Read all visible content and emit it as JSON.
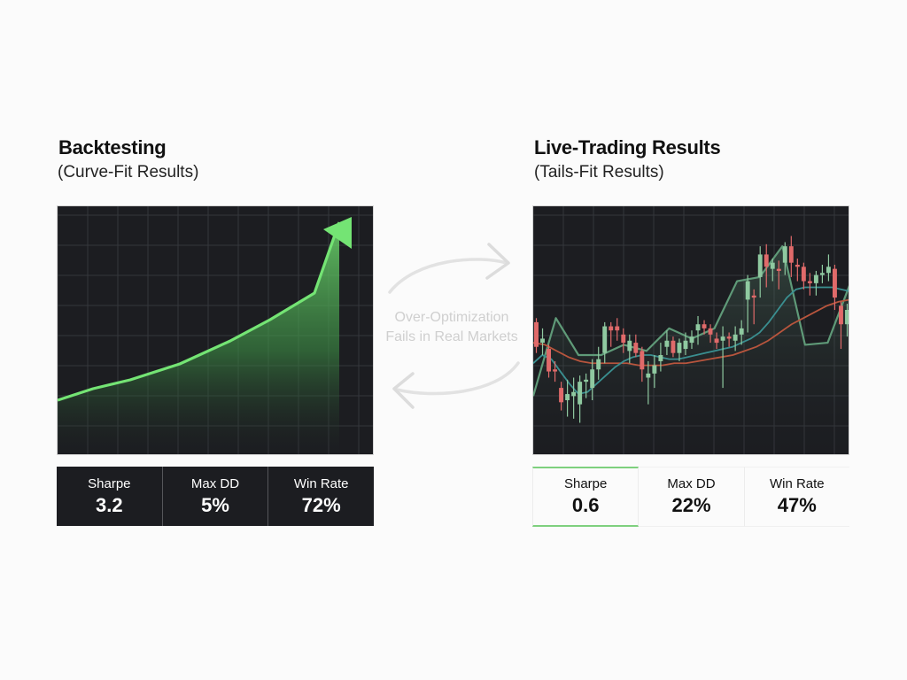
{
  "left_panel": {
    "title": "Backtesting",
    "subtitle": "(Curve-Fit Results)",
    "stats": [
      {
        "label": "Sharpe",
        "value": "3.2"
      },
      {
        "label": "Max DD",
        "value": "5%"
      },
      {
        "label": "Win Rate",
        "value": "72%"
      }
    ]
  },
  "right_panel": {
    "title": "Live-Trading Results",
    "subtitle": "(Tails-Fit Results)",
    "stats": [
      {
        "label": "Sharpe",
        "value": "0.6"
      },
      {
        "label": "Max DD",
        "value": "22%"
      },
      {
        "label": "Win Rate",
        "value": "47%"
      }
    ]
  },
  "center_note": {
    "line1": "Over-Optimization",
    "line2": "Fails in Real Markets",
    "icon": "cycle-arrows-icon"
  },
  "colors": {
    "background": "#fbfbfb",
    "chart_bg": "#1c1d21",
    "grid": "#34363c",
    "equity_green": "#6fdc6f",
    "candle_up": "#8fc9a0",
    "candle_down": "#e06a6a",
    "ma_fast": "#3a8f90",
    "ma_slow": "#b8553d",
    "highlight": "#7ed07e"
  },
  "chart_data": [
    {
      "type": "area",
      "title": "Backtesting (Curve-Fit Results)",
      "xlabel": "",
      "ylabel": "",
      "grid": true,
      "x": [
        0,
        1,
        2,
        3,
        4,
        5,
        6,
        7
      ],
      "values": [
        20,
        25,
        30,
        38,
        48,
        58,
        75,
        100
      ],
      "annotation": "upward arrow at end of equity curve",
      "ylim": [
        0,
        100
      ]
    },
    {
      "type": "candlestick",
      "title": "Live-Trading Results (Tails-Fit Results)",
      "xlabel": "",
      "ylabel": "",
      "grid": true,
      "candles": [
        {
          "o": 60,
          "c": 48,
          "h": 62,
          "l": 45
        },
        {
          "o": 50,
          "c": 52,
          "h": 57,
          "l": 44
        },
        {
          "o": 47,
          "c": 36,
          "h": 49,
          "l": 33
        },
        {
          "o": 37,
          "c": 36,
          "h": 41,
          "l": 31
        },
        {
          "o": 28,
          "c": 21,
          "h": 31,
          "l": 17
        },
        {
          "o": 22,
          "c": 25,
          "h": 32,
          "l": 14
        },
        {
          "o": 24,
          "c": 26,
          "h": 33,
          "l": 13
        },
        {
          "o": 20,
          "c": 31,
          "h": 34,
          "l": 11
        },
        {
          "o": 31,
          "c": 32,
          "h": 35,
          "l": 23
        },
        {
          "o": 28,
          "c": 37,
          "h": 42,
          "l": 22
        },
        {
          "o": 37,
          "c": 42,
          "h": 48,
          "l": 32
        },
        {
          "o": 45,
          "c": 58,
          "h": 60,
          "l": 40
        },
        {
          "o": 58,
          "c": 56,
          "h": 60,
          "l": 48
        },
        {
          "o": 58,
          "c": 56,
          "h": 62,
          "l": 51
        },
        {
          "o": 54,
          "c": 50,
          "h": 57,
          "l": 45
        },
        {
          "o": 46,
          "c": 51,
          "h": 54,
          "l": 40
        },
        {
          "o": 50,
          "c": 45,
          "h": 54,
          "l": 43
        },
        {
          "o": 46,
          "c": 37,
          "h": 48,
          "l": 31
        },
        {
          "o": 33,
          "c": 35,
          "h": 41,
          "l": 20
        },
        {
          "o": 35,
          "c": 39,
          "h": 44,
          "l": 28
        },
        {
          "o": 41,
          "c": 44,
          "h": 50,
          "l": 36
        },
        {
          "o": 48,
          "c": 51,
          "h": 56,
          "l": 44
        },
        {
          "o": 51,
          "c": 45,
          "h": 53,
          "l": 43
        },
        {
          "o": 45,
          "c": 50,
          "h": 52,
          "l": 41
        },
        {
          "o": 47,
          "c": 51,
          "h": 55,
          "l": 44
        },
        {
          "o": 50,
          "c": 53,
          "h": 56,
          "l": 47
        },
        {
          "o": 56,
          "c": 59,
          "h": 63,
          "l": 49
        },
        {
          "o": 59,
          "c": 57,
          "h": 61,
          "l": 54
        },
        {
          "o": 57,
          "c": 54,
          "h": 59,
          "l": 50
        },
        {
          "o": 52,
          "c": 50,
          "h": 55,
          "l": 47
        },
        {
          "o": 51,
          "c": 53,
          "h": 58,
          "l": 28
        },
        {
          "o": 53,
          "c": 52,
          "h": 55,
          "l": 48
        },
        {
          "o": 51,
          "c": 54,
          "h": 58,
          "l": 46
        },
        {
          "o": 54,
          "c": 57,
          "h": 61,
          "l": 49
        },
        {
          "o": 71,
          "c": 80,
          "h": 83,
          "l": 55
        },
        {
          "o": 73,
          "c": 72,
          "h": 76,
          "l": 59
        },
        {
          "o": 82,
          "c": 93,
          "h": 97,
          "l": 72
        },
        {
          "o": 93,
          "c": 87,
          "h": 98,
          "l": 77
        },
        {
          "o": 86,
          "c": 89,
          "h": 91,
          "l": 80
        },
        {
          "o": 86,
          "c": 85,
          "h": 90,
          "l": 76
        },
        {
          "o": 89,
          "c": 97,
          "h": 99,
          "l": 83
        },
        {
          "o": 97,
          "c": 89,
          "h": 102,
          "l": 82
        },
        {
          "o": 88,
          "c": 87,
          "h": 91,
          "l": 80
        },
        {
          "o": 87,
          "c": 80,
          "h": 89,
          "l": 76
        },
        {
          "o": 80,
          "c": 79,
          "h": 84,
          "l": 73
        },
        {
          "o": 79,
          "c": 83,
          "h": 85,
          "l": 73
        },
        {
          "o": 83,
          "c": 84,
          "h": 88,
          "l": 79
        },
        {
          "o": 84,
          "c": 87,
          "h": 93,
          "l": 80
        },
        {
          "o": 86,
          "c": 72,
          "h": 88,
          "l": 66
        },
        {
          "o": 68,
          "c": 59,
          "h": 70,
          "l": 47
        },
        {
          "o": 59,
          "c": 66,
          "h": 69,
          "l": 53
        }
      ],
      "series": [
        {
          "name": "fast MA",
          "values": [
            40,
            44,
            42,
            36,
            30,
            25,
            26,
            30,
            34,
            38,
            41,
            43,
            44,
            44,
            43,
            42,
            42,
            43,
            44,
            45,
            46,
            47,
            48,
            50,
            52,
            55,
            60,
            66,
            72,
            76,
            77,
            77,
            77,
            77,
            76,
            75
          ]
        },
        {
          "name": "slow MA",
          "values": [
            50,
            49,
            46,
            43,
            41,
            40,
            40,
            40,
            40,
            39,
            39,
            39,
            40,
            40,
            41,
            42,
            43,
            44,
            46,
            48,
            51,
            55,
            59,
            62,
            65,
            68,
            70,
            71
          ]
        },
        {
          "name": "overlay line",
          "values": [
            24,
            62,
            44,
            44,
            49,
            46,
            57,
            52,
            57,
            80,
            82,
            97,
            49,
            50,
            79
          ]
        }
      ],
      "ylim": [
        0,
        110
      ]
    }
  ]
}
